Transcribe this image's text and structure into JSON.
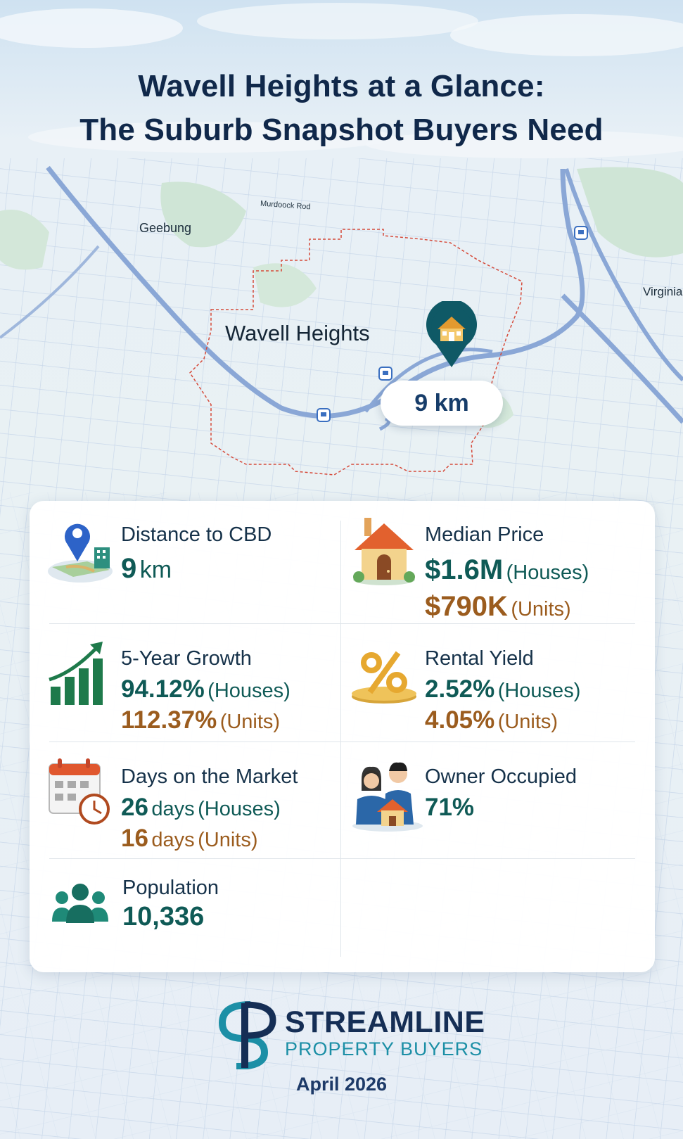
{
  "title": {
    "line1": "Wavell Heights at a Glance:",
    "line2": "The Suburb Snapshot Buyers Need"
  },
  "map": {
    "labels": {
      "geebung": "Geebung",
      "murdoch": "Murdoock Rod",
      "virginia": "Virginia",
      "suburb": "Wavell Heights"
    },
    "distance_badge": "9 km",
    "icons": [
      "house-pin-icon",
      "bus-stop-icon"
    ]
  },
  "stats": {
    "distance": {
      "label": "Distance to CBD",
      "value": "9",
      "unit": "km",
      "icon": "map-pin-icon"
    },
    "median": {
      "label": "Median Price",
      "houses_value": "$1.6M",
      "houses_suffix": "(Houses)",
      "units_value": "$790K",
      "units_suffix": "(Units)",
      "icon": "house-icon"
    },
    "growth": {
      "label": "5-Year Growth",
      "houses_value": "94.12%",
      "houses_suffix": "(Houses)",
      "units_value": "112.37%",
      "units_suffix": "(Units)",
      "icon": "growth-chart-icon"
    },
    "yield": {
      "label": "Rental Yield",
      "houses_value": "2.52%",
      "houses_suffix": "(Houses)",
      "units_value": "4.05%",
      "units_suffix": "(Units)",
      "icon": "percent-icon"
    },
    "days": {
      "label": "Days on the Market",
      "houses_value": "26",
      "houses_unit": "days",
      "houses_suffix": "(Houses)",
      "units_value": "16",
      "units_unit": "days",
      "units_suffix": "(Units)",
      "icon": "calendar-clock-icon"
    },
    "owner": {
      "label": "Owner Occupied",
      "value": "71%",
      "icon": "family-home-icon"
    },
    "population": {
      "label": "Population",
      "value": "10,336",
      "icon": "people-icon"
    }
  },
  "brand": {
    "name": "STREAMLINE",
    "subtitle": "PROPERTY BUYERS",
    "date": "April 2026"
  },
  "colors": {
    "title": "#10284a",
    "teal": "#0f5a56",
    "brown": "#9b5c1e",
    "road": "#7f9fd0",
    "boundary": "#d64a3a",
    "brand_navy": "#152e55",
    "brand_teal": "#1c8fa6"
  }
}
